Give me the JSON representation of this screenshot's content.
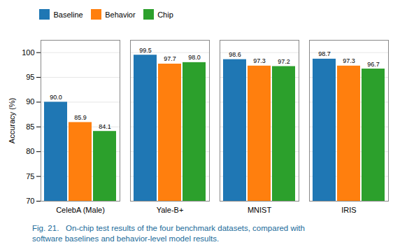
{
  "chart_data": {
    "type": "bar",
    "categories": [
      "CelebA (Male)",
      "Yale-B+",
      "MNIST",
      "IRIS"
    ],
    "series": [
      {
        "name": "Baseline",
        "color": "#1f77b4",
        "values": [
          90.0,
          99.5,
          98.6,
          98.7
        ],
        "value_labels": [
          "90.0",
          "99.5",
          "98.6",
          "98.7"
        ]
      },
      {
        "name": "Behavior",
        "color": "#ff7f0e",
        "values": [
          85.9,
          97.7,
          97.3,
          97.3
        ],
        "value_labels": [
          "85.9",
          "97.7",
          "97.3",
          "97.3"
        ]
      },
      {
        "name": "Chip",
        "color": "#2ca02c",
        "values": [
          84.1,
          98.0,
          97.2,
          96.7
        ],
        "value_labels": [
          "84.1",
          "98.0",
          "97.2",
          "96.7"
        ]
      }
    ],
    "ylabel": "Accuracy (%)",
    "ylim": [
      70,
      102.5
    ],
    "yticks": [
      70,
      75,
      80,
      85,
      90,
      95,
      100
    ],
    "grid": true,
    "legend": "upper left",
    "data_labels": true,
    "caption": {
      "lines": [
        "Fig. 21.   On-chip test results of the four benchmark datasets, compared with",
        "software baselines and behavior-level model results."
      ],
      "color": "#1a6b9a"
    }
  }
}
